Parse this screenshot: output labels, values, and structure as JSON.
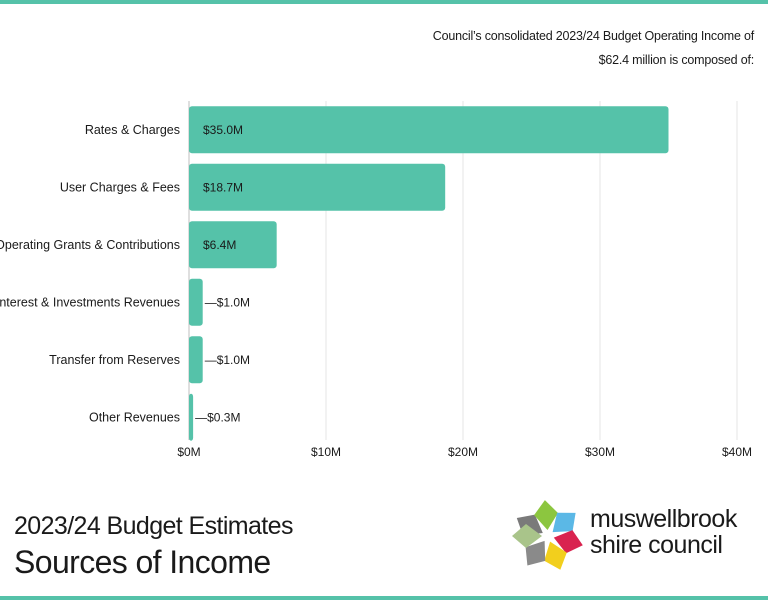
{
  "intro": {
    "line1": "Council’s consolidated 2023/24 Budget Operating Income of",
    "line2": "$62.4 million is composed of:"
  },
  "chart_data": {
    "type": "bar",
    "orientation": "horizontal",
    "categories": [
      "Rates & Charges",
      "User Charges & Fees",
      "Operating Grants & Contributions",
      "Interest & Investments Revenues",
      "Transfer from Reserves",
      "Other Revenues"
    ],
    "values": [
      35.0,
      18.7,
      6.4,
      1.0,
      1.0,
      0.3
    ],
    "data_labels": [
      "$35.0M",
      "$18.7M",
      "$6.4M",
      "—$1.0M",
      "—$1.0M",
      "—$0.3M"
    ],
    "xlim": [
      0,
      40
    ],
    "x_ticks": [
      0,
      10,
      20,
      30,
      40
    ],
    "x_tick_labels": [
      "$0M",
      "$10M",
      "$20M",
      "$30M",
      "$40M"
    ],
    "grid": "vertical",
    "bar_color": "#55c2a9"
  },
  "caption": {
    "line1": "2023/24 Budget Estimates",
    "line2": "Sources of Income"
  },
  "logo": {
    "line1": "muswellbrook",
    "line2": "shire council",
    "petal_colors": [
      "#7a7a7a",
      "#8cc63f",
      "#5bb8e6",
      "#d9234f",
      "#f2cf1d",
      "#8a8a8a",
      "#a9c48a"
    ]
  },
  "accent_color": "#55c2a9"
}
